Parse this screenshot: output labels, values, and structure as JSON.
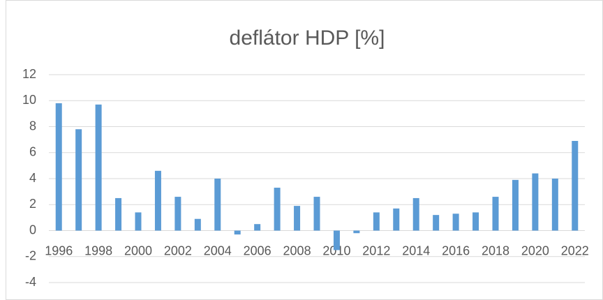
{
  "chart_data": {
    "type": "bar",
    "title": "deflátor HDP [%]",
    "categories": [
      "1996",
      null,
      "1998",
      null,
      "2000",
      null,
      "2002",
      null,
      "2004",
      null,
      "2006",
      null,
      "2008",
      null,
      "2010",
      null,
      "2012",
      null,
      "2014",
      null,
      "2016",
      null,
      "2018",
      null,
      "2020",
      null,
      "2022"
    ],
    "values": [
      9.8,
      7.8,
      9.7,
      2.5,
      1.4,
      4.6,
      2.6,
      0.9,
      4.0,
      -0.3,
      0.5,
      3.3,
      1.9,
      2.6,
      -1.5,
      -0.2,
      1.4,
      1.7,
      2.5,
      1.2,
      1.3,
      1.4,
      2.6,
      3.9,
      4.4,
      4.0,
      6.9
    ],
    "color": "#5b9bd5",
    "ylim": [
      -4,
      12
    ],
    "yticks": [
      -4,
      -2,
      0,
      2,
      4,
      6,
      8,
      10,
      12
    ],
    "grid": true
  }
}
